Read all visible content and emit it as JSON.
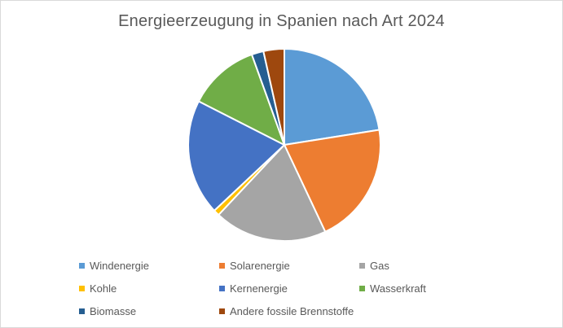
{
  "chart_data": {
    "type": "pie",
    "title": "Energieerzeugung in Spanien nach Art 2024",
    "legend_position": "bottom",
    "categories": [
      "Windenergie",
      "Solarenergie",
      "Gas",
      "Kohle",
      "Kernenergie",
      "Wasserkraft",
      "Biomasse",
      "Andere fossile Brennstoffe"
    ],
    "values": [
      22.5,
      20.5,
      19.0,
      1.0,
      19.5,
      12.0,
      2.0,
      3.5
    ],
    "colors": [
      "#5b9bd5",
      "#ed7d31",
      "#a5a5a5",
      "#ffc000",
      "#4472c4",
      "#70ad47",
      "#255e91",
      "#9e480e"
    ]
  }
}
